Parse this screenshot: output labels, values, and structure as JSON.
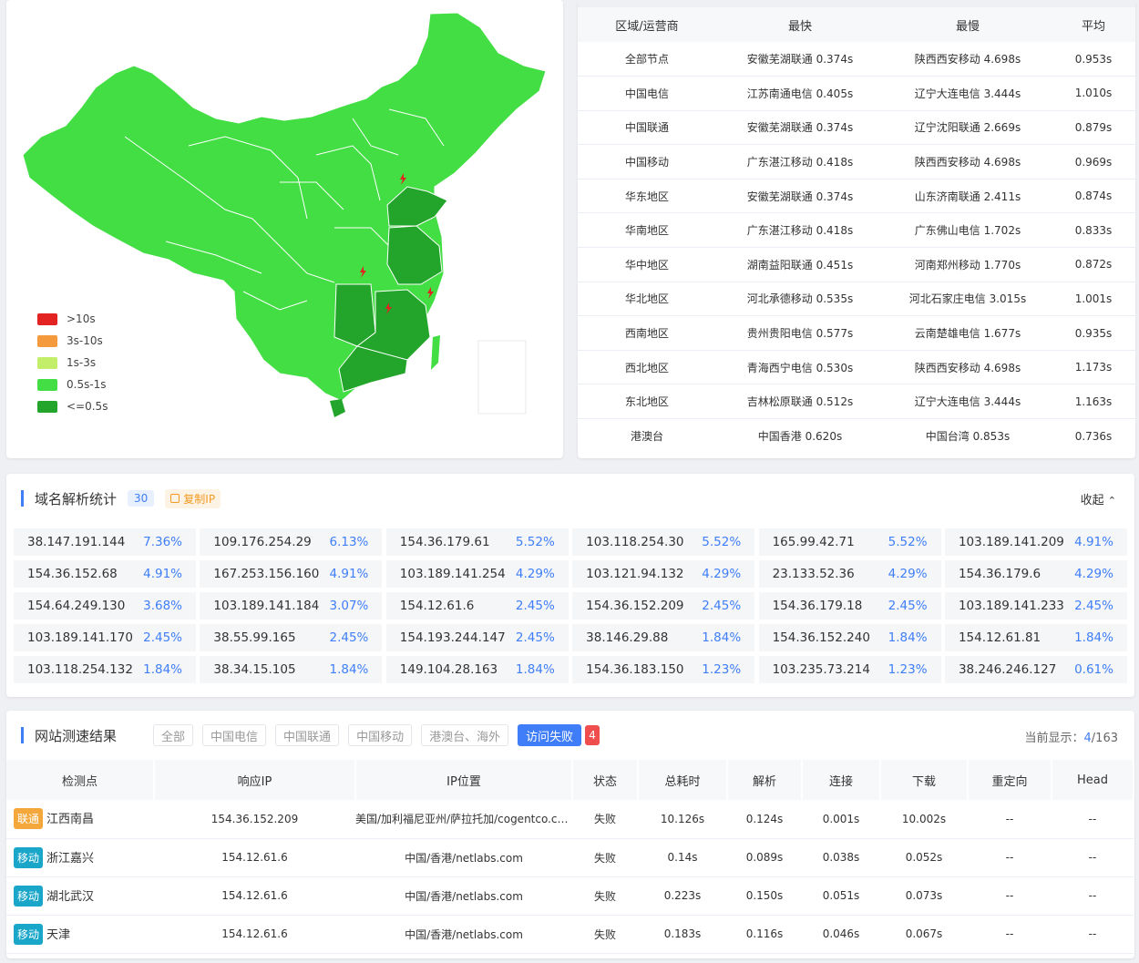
{
  "colors": {
    "accent": "#3f7ef8",
    "fail": "#f03a3a",
    "fast": "#21a522",
    "tag_unicom": "#f4a83b",
    "tag_mobile": "#19a6c9"
  },
  "legend": [
    {
      "label": ">10s",
      "color": "#e32222"
    },
    {
      "label": "3s-10s",
      "color": "#f59a3c"
    },
    {
      "label": "1s-3s",
      "color": "#c2ee6a"
    },
    {
      "label": "0.5s-1s",
      "color": "#42de44"
    },
    {
      "label": "<=0.5s",
      "color": "#22a52a"
    }
  ],
  "region_table": {
    "headers": [
      "区域/运营商",
      "最快",
      "最慢",
      "平均"
    ],
    "rows": [
      [
        "全部节点",
        "安徽芜湖联通 0.374s",
        "陕西西安移动 4.698s",
        "0.953s"
      ],
      [
        "中国电信",
        "江苏南通电信 0.405s",
        "辽宁大连电信 3.444s",
        "1.010s"
      ],
      [
        "中国联通",
        "安徽芜湖联通 0.374s",
        "辽宁沈阳联通 2.669s",
        "0.879s"
      ],
      [
        "中国移动",
        "广东湛江移动 0.418s",
        "陕西西安移动 4.698s",
        "0.969s"
      ],
      [
        "华东地区",
        "安徽芜湖联通 0.374s",
        "山东济南联通 2.411s",
        "0.874s"
      ],
      [
        "华南地区",
        "广东湛江移动 0.418s",
        "广东佛山电信 1.702s",
        "0.833s"
      ],
      [
        "华中地区",
        "湖南益阳联通 0.451s",
        "河南郑州移动 1.770s",
        "0.872s"
      ],
      [
        "华北地区",
        "河北承德移动 0.535s",
        "河北石家庄电信 3.015s",
        "1.001s"
      ],
      [
        "西南地区",
        "贵州贵阳电信 0.577s",
        "云南楚雄电信 1.677s",
        "0.935s"
      ],
      [
        "西北地区",
        "青海西宁电信 0.530s",
        "陕西西安移动 4.698s",
        "1.173s"
      ],
      [
        "东北地区",
        "吉林松原联通 0.512s",
        "辽宁大连电信 3.444s",
        "1.163s"
      ],
      [
        "港澳台",
        "中国香港 0.620s",
        "中国台湾 0.853s",
        "0.736s"
      ]
    ]
  },
  "dns": {
    "title": "域名解析统计",
    "count": "30",
    "copy_label": "复制IP",
    "collapse_label": "收起",
    "items": [
      [
        "38.147.191.144",
        "7.36%"
      ],
      [
        "109.176.254.29",
        "6.13%"
      ],
      [
        "154.36.179.61",
        "5.52%"
      ],
      [
        "103.118.254.30",
        "5.52%"
      ],
      [
        "165.99.42.71",
        "5.52%"
      ],
      [
        "103.189.141.209",
        "4.91%"
      ],
      [
        "154.36.152.68",
        "4.91%"
      ],
      [
        "167.253.156.160",
        "4.91%"
      ],
      [
        "103.189.141.254",
        "4.29%"
      ],
      [
        "103.121.94.132",
        "4.29%"
      ],
      [
        "23.133.52.36",
        "4.29%"
      ],
      [
        "154.36.179.6",
        "4.29%"
      ],
      [
        "154.64.249.130",
        "3.68%"
      ],
      [
        "103.189.141.184",
        "3.07%"
      ],
      [
        "154.12.61.6",
        "2.45%"
      ],
      [
        "154.36.152.209",
        "2.45%"
      ],
      [
        "154.36.179.18",
        "2.45%"
      ],
      [
        "103.189.141.233",
        "2.45%"
      ],
      [
        "103.189.141.170",
        "2.45%"
      ],
      [
        "38.55.99.165",
        "2.45%"
      ],
      [
        "154.193.244.147",
        "2.45%"
      ],
      [
        "38.146.29.88",
        "1.84%"
      ],
      [
        "154.36.152.240",
        "1.84%"
      ],
      [
        "154.12.61.81",
        "1.84%"
      ],
      [
        "103.118.254.132",
        "1.84%"
      ],
      [
        "38.34.15.105",
        "1.84%"
      ],
      [
        "149.104.28.163",
        "1.84%"
      ],
      [
        "154.36.183.150",
        "1.23%"
      ],
      [
        "103.235.73.214",
        "1.23%"
      ],
      [
        "38.246.246.127",
        "0.61%"
      ]
    ]
  },
  "speed": {
    "title": "网站测速结果",
    "filters": [
      "全部",
      "中国电信",
      "中国联通",
      "中国移动",
      "港澳台、海外"
    ],
    "active_filter": "访问失败",
    "fail_count": "4",
    "showing_label": "当前显示：",
    "showing_current": "4",
    "showing_total": "/163",
    "headers": [
      "检测点",
      "响应IP",
      "IP位置",
      "状态",
      "总耗时",
      "解析",
      "连接",
      "下载",
      "重定向",
      "Head"
    ],
    "rows": [
      {
        "tag": "联通",
        "tag_type": "unicom",
        "location": "江西南昌",
        "ip": "154.36.152.209",
        "ip_loc": "美国/加利福尼亚州/萨拉托加/cogentco.com",
        "status": "失败",
        "total": "10.126s",
        "total_class": "red",
        "dns": "0.124s",
        "connect": "0.001s",
        "download": "10.002s",
        "redirect": "--",
        "head": "--"
      },
      {
        "tag": "移动",
        "tag_type": "mobile",
        "location": "浙江嘉兴",
        "ip": "154.12.61.6",
        "ip_loc": "中国/香港/netlabs.com",
        "status": "失败",
        "total": "0.14s",
        "total_class": "green",
        "dns": "0.089s",
        "connect": "0.038s",
        "download": "0.052s",
        "redirect": "--",
        "head": "--"
      },
      {
        "tag": "移动",
        "tag_type": "mobile",
        "location": "湖北武汉",
        "ip": "154.12.61.6",
        "ip_loc": "中国/香港/netlabs.com",
        "status": "失败",
        "total": "0.223s",
        "total_class": "green",
        "dns": "0.150s",
        "connect": "0.051s",
        "download": "0.073s",
        "redirect": "--",
        "head": "--"
      },
      {
        "tag": "移动",
        "tag_type": "mobile",
        "location": "天津",
        "ip": "154.12.61.6",
        "ip_loc": "中国/香港/netlabs.com",
        "status": "失败",
        "total": "0.183s",
        "total_class": "green",
        "dns": "0.116s",
        "connect": "0.046s",
        "download": "0.067s",
        "redirect": "--",
        "head": "--"
      }
    ]
  }
}
